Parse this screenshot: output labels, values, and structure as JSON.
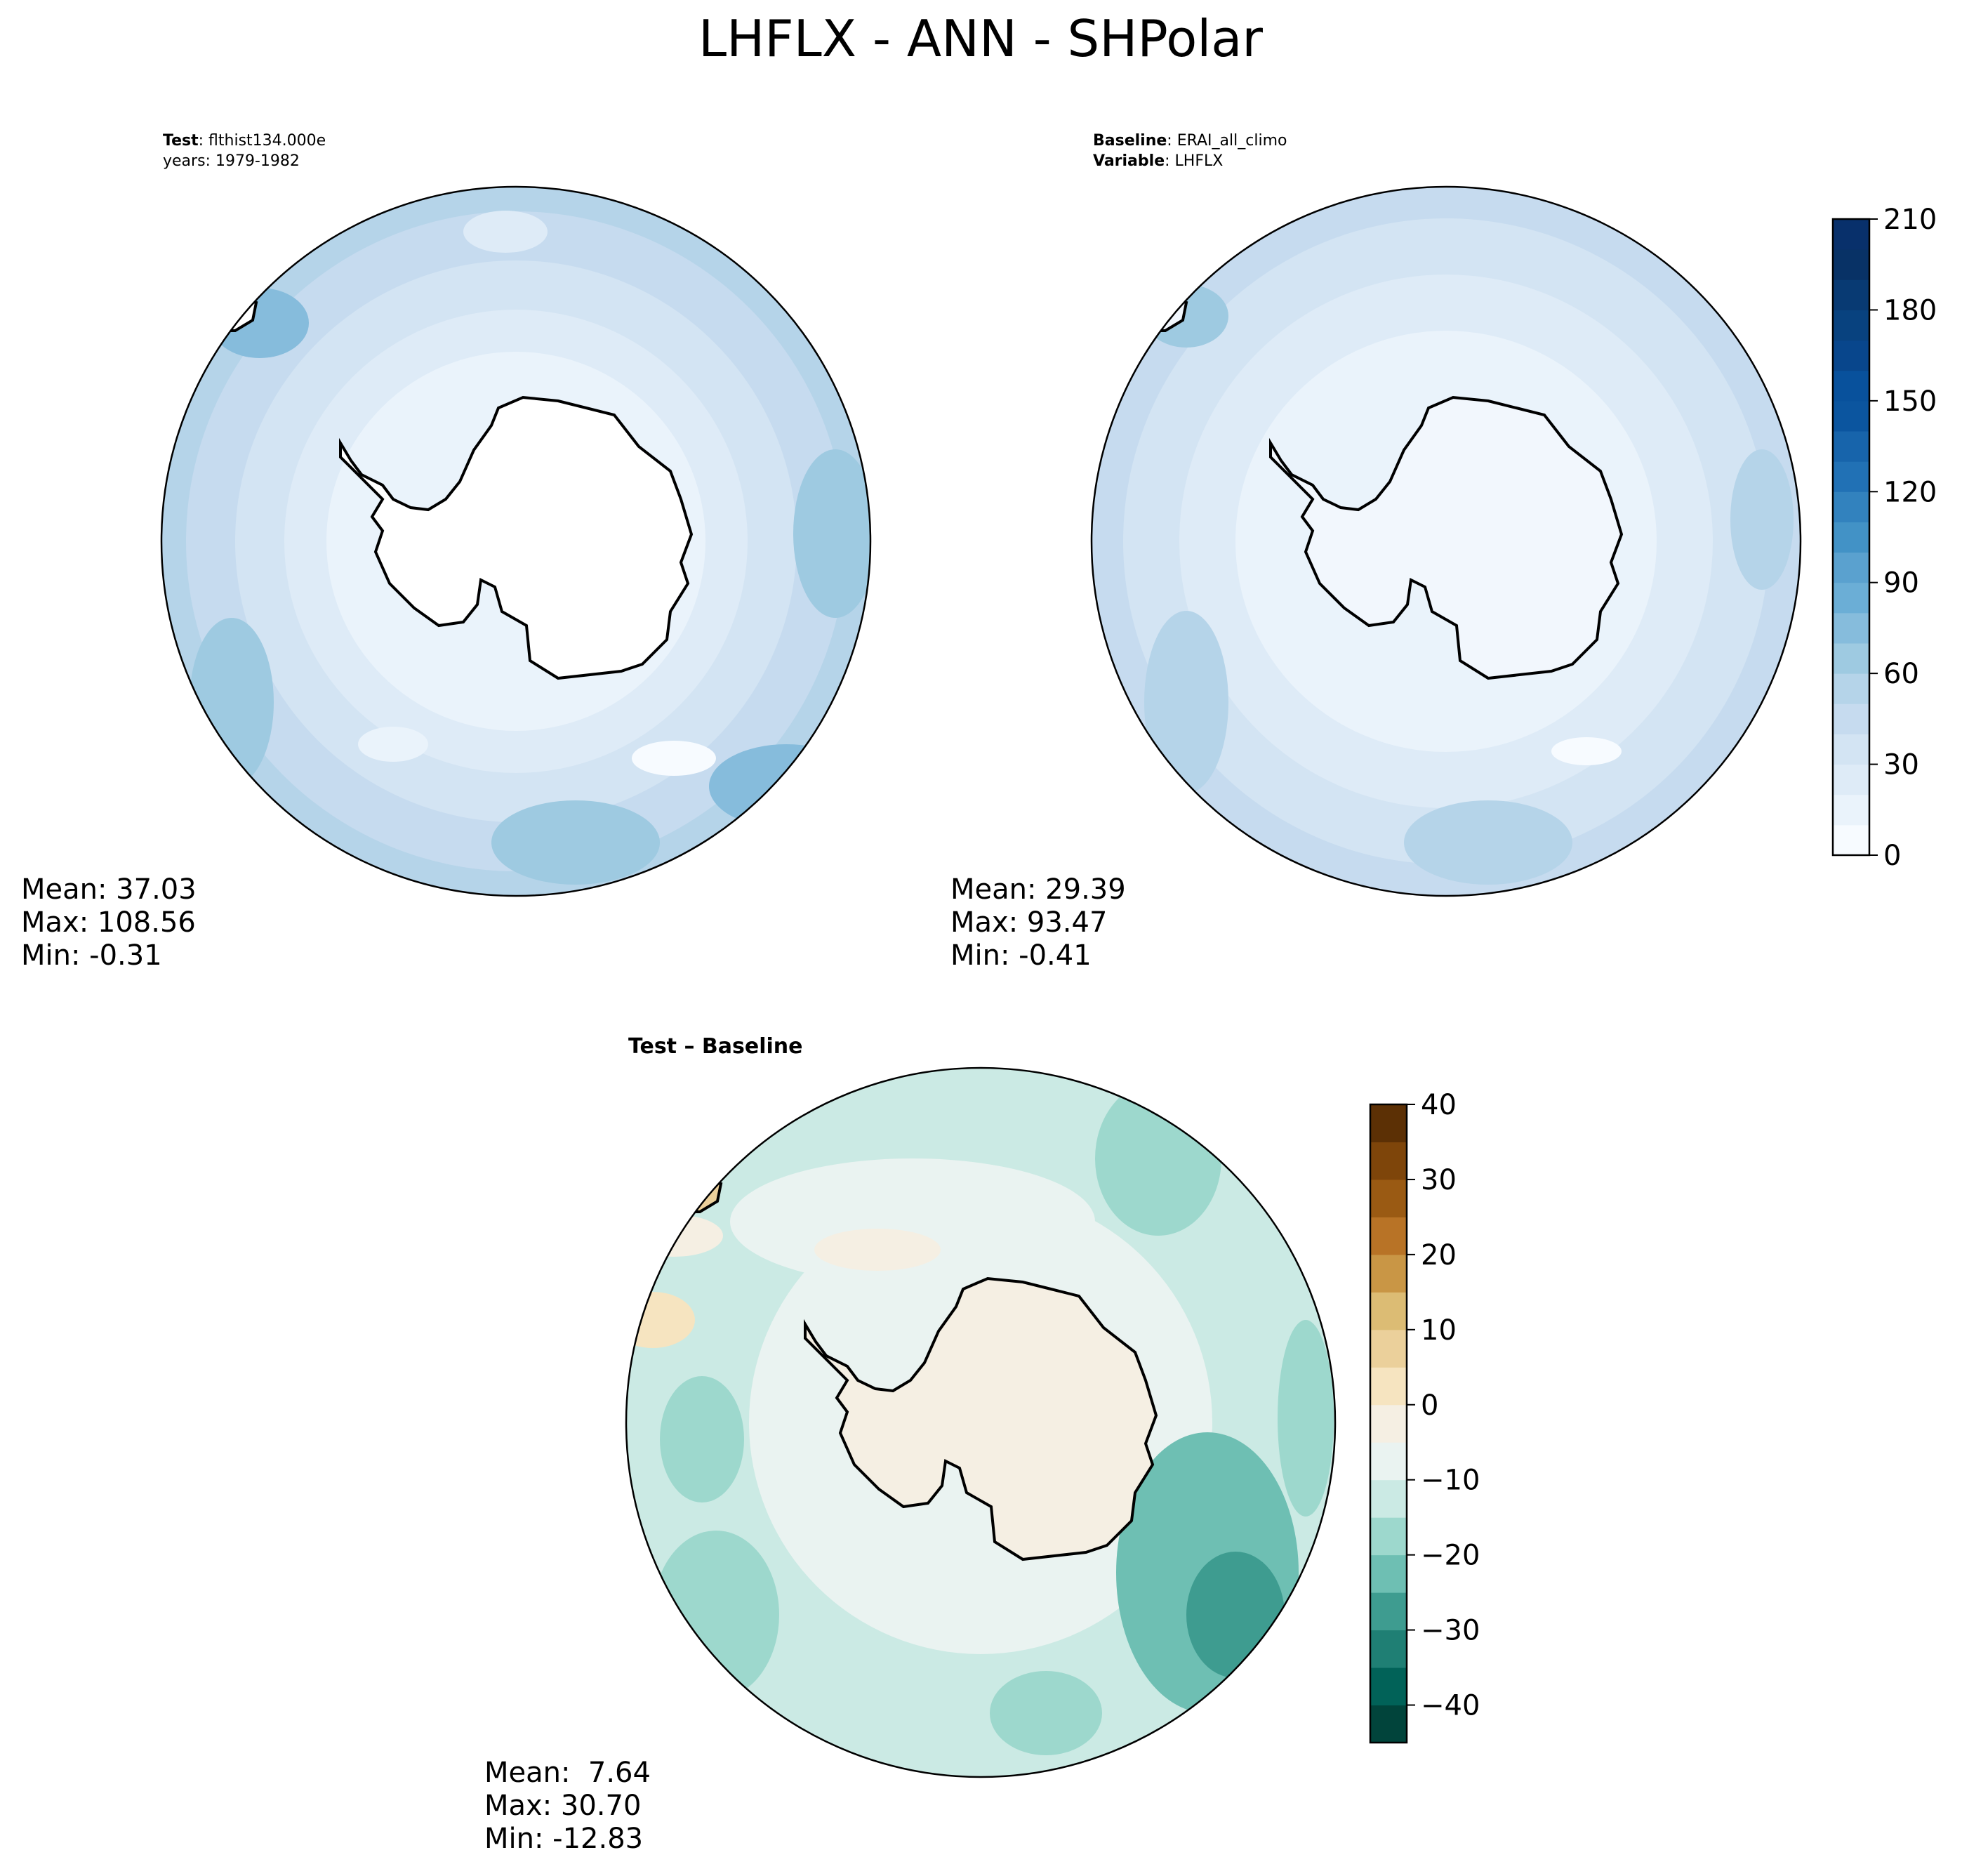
{
  "figure": {
    "title": "LHFLX - ANN - SHPolar"
  },
  "panels": {
    "test": {
      "name_key": "Test",
      "name_value": "flthist134.000e",
      "years": "years: 1979-1982",
      "stats": [
        "Mean: 37.03",
        "Max: 108.56",
        "Min: -0.31"
      ]
    },
    "baseline": {
      "name_key": "Baseline",
      "name_value": "ERAI_all_climo",
      "var_key": "Variable",
      "var_value": "LHFLX",
      "stats": [
        "Mean: 29.39",
        "Max: 93.47",
        "Min: -0.41"
      ]
    },
    "diff": {
      "title": "Test – Baseline",
      "stats": [
        "Mean:  7.64",
        "Max: 30.70",
        "Min: -12.83"
      ]
    }
  },
  "colorbars": {
    "blues": {
      "ticks": [
        "210",
        "180",
        "150",
        "120",
        "90",
        "60",
        "30",
        "0"
      ],
      "levels": [
        0,
        10,
        20,
        30,
        40,
        50,
        60,
        70,
        80,
        90,
        100,
        110,
        120,
        130,
        140,
        150,
        160,
        170,
        180,
        190,
        200,
        210
      ],
      "colors": [
        "#f7fbff",
        "#eaf3fb",
        "#deebf7",
        "#d3e4f3",
        "#c6dbef",
        "#b5d4e9",
        "#9ecae1",
        "#86bcdc",
        "#6baed6",
        "#5aa1cf",
        "#4292c6",
        "#3282be",
        "#2171b5",
        "#1764ab",
        "#0b559f",
        "#08519c",
        "#08468c",
        "#08427f",
        "#083a73",
        "#083266",
        "#08306b"
      ]
    },
    "brbg": {
      "ticks": [
        "40",
        "30",
        "20",
        "10",
        "0",
        "−10",
        "−20",
        "−30",
        "−40"
      ],
      "colors": [
        "#01443b",
        "#016258",
        "#1f7f74",
        "#3e9c90",
        "#6ebfb3",
        "#9dd8cd",
        "#cbeae4",
        "#eaf3f1",
        "#f5efe3",
        "#f6e4c0",
        "#ebd09b",
        "#dcbc74",
        "#c99645",
        "#b87326",
        "#9a5a13",
        "#7e450a",
        "#5c3005"
      ]
    }
  },
  "colors": {
    "ocean_test": "#c6dbef",
    "ocean_base": "#d3e4f3",
    "land_test": "#ffffff",
    "land_base": "#f2f7fd",
    "diff_ocean": "#cbeae4",
    "diff_land": "#f5efe3"
  }
}
